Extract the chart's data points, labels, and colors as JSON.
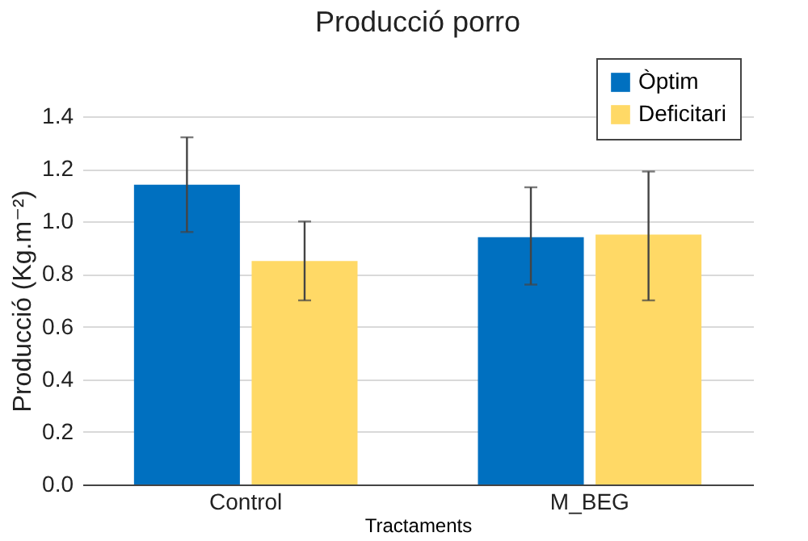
{
  "chart_data": {
    "type": "bar",
    "title": "Producció porro",
    "xlabel": "Tractaments",
    "ylabel": "Producció (Kg.m⁻²)",
    "categories": [
      "Control",
      "M_BEG"
    ],
    "series": [
      {
        "name": "Òptim",
        "color": "#0070c0",
        "values": [
          1.14,
          0.94
        ],
        "errors": [
          [
            0.96,
            1.32
          ],
          [
            0.76,
            1.13
          ]
        ]
      },
      {
        "name": "Deficitari",
        "color": "#ffd966",
        "values": [
          0.85,
          0.95
        ],
        "errors": [
          [
            0.7,
            1.0
          ],
          [
            0.7,
            1.19
          ]
        ]
      }
    ],
    "ylim": [
      0,
      1.4
    ],
    "yticks": [
      {
        "value": 0,
        "label": "0.0"
      },
      0.2,
      0.4,
      0.6,
      0.8,
      {
        "value": 1,
        "label": "1.0"
      },
      1.2,
      1.4
    ],
    "grid": "y",
    "legend": "top right"
  }
}
